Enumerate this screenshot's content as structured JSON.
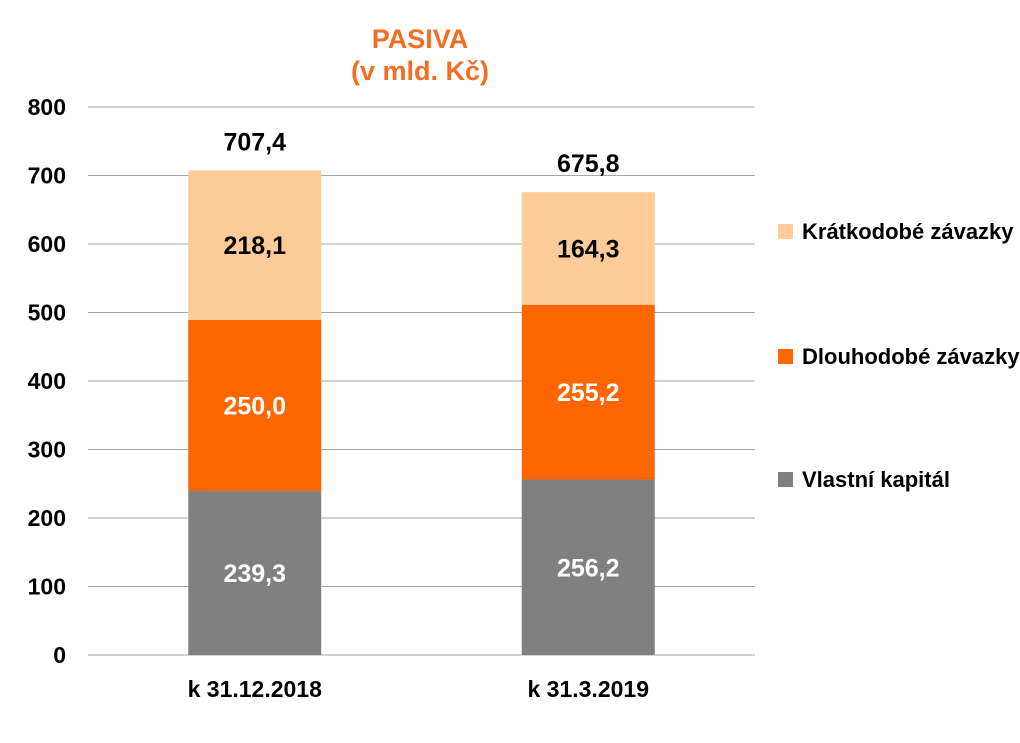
{
  "chart_data": {
    "type": "bar",
    "stacked": true,
    "title": "PASIVA",
    "subtitle": "(v mld. Kč)",
    "categories": [
      "k 31.12.2018",
      "k 31.3.2019"
    ],
    "series": [
      {
        "name": "Vlastní kapitál",
        "values": [
          239.3,
          256.2
        ],
        "labels": [
          "239,3",
          "256,2"
        ],
        "color": "#808080",
        "label_color": "#ffffff"
      },
      {
        "name": "Dlouhodobé závazky",
        "values": [
          250.0,
          255.2
        ],
        "labels": [
          "250,0",
          "255,2"
        ],
        "color": "#ff6600",
        "label_color": "#ffffff"
      },
      {
        "name": "Krátkodobé závazky",
        "values": [
          218.1,
          164.3
        ],
        "labels": [
          "218,1",
          "164,3"
        ],
        "color": "#ffcc99",
        "label_color": "#000000"
      }
    ],
    "totals": [
      707.4,
      675.8
    ],
    "total_labels": [
      "707,4",
      "675,8"
    ],
    "ylim": [
      0,
      800
    ],
    "yticks": [
      0,
      100,
      200,
      300,
      400,
      500,
      600,
      700,
      800
    ],
    "grid": true,
    "legend_position": "right",
    "xlabel": "",
    "ylabel": ""
  }
}
